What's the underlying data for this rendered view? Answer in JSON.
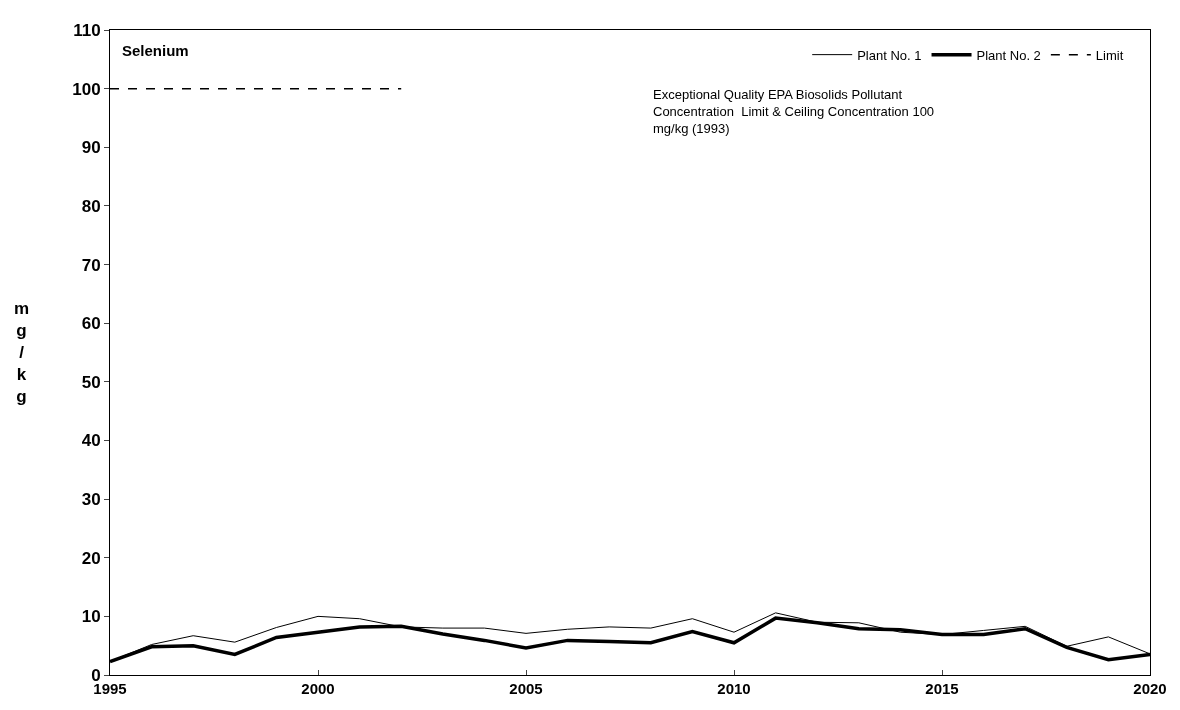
{
  "chart_data": {
    "type": "line",
    "title": "Selenium",
    "ylabel": "mg/kg",
    "x": [
      1995,
      1996,
      1997,
      1998,
      1999,
      2000,
      2001,
      2002,
      2003,
      2004,
      2005,
      2006,
      2007,
      2008,
      2009,
      2010,
      2011,
      2012,
      2013,
      2014,
      2015,
      2016,
      2017,
      2018,
      2019,
      2020
    ],
    "series": [
      {
        "name": "Plant No. 1",
        "color": "#000000",
        "values": [
          2.3,
          5.2,
          6.7,
          5.6,
          8.1,
          10.0,
          9.6,
          8.2,
          8.0,
          8.0,
          7.1,
          7.8,
          8.2,
          8.0,
          9.6,
          7.3,
          10.6,
          9.0,
          8.9,
          7.3,
          6.9,
          7.6,
          8.3,
          4.9,
          6.5,
          3.6
        ]
      },
      {
        "name": "Plant No. 2",
        "color": "#000000",
        "values": [
          2.3,
          4.8,
          5.0,
          3.5,
          6.4,
          7.3,
          8.2,
          8.3,
          7.0,
          5.9,
          4.6,
          5.9,
          5.7,
          5.5,
          7.4,
          5.5,
          9.7,
          8.9,
          7.9,
          7.7,
          6.9,
          6.9,
          7.9,
          4.7,
          2.6,
          3.5
        ]
      },
      {
        "name": "Limit",
        "color": "#000000",
        "line_style": "dashed",
        "x": [
          1995,
          2002
        ],
        "values": [
          100,
          100
        ]
      }
    ],
    "annotations": [
      "Exceptional Quality EPA Biosolids Pollutant\nConcentration  Limit & Ceiling Concentration 100\nmg/kg (1993)"
    ],
    "xlim": [
      1995,
      2020
    ],
    "xticks": [
      1995,
      2000,
      2005,
      2010,
      2015,
      2020
    ],
    "ylim": [
      0,
      110
    ],
    "yticks": [
      0,
      10,
      20,
      30,
      40,
      50,
      60,
      70,
      80,
      90,
      100,
      110
    ],
    "legend": "top right",
    "marker": "none"
  }
}
